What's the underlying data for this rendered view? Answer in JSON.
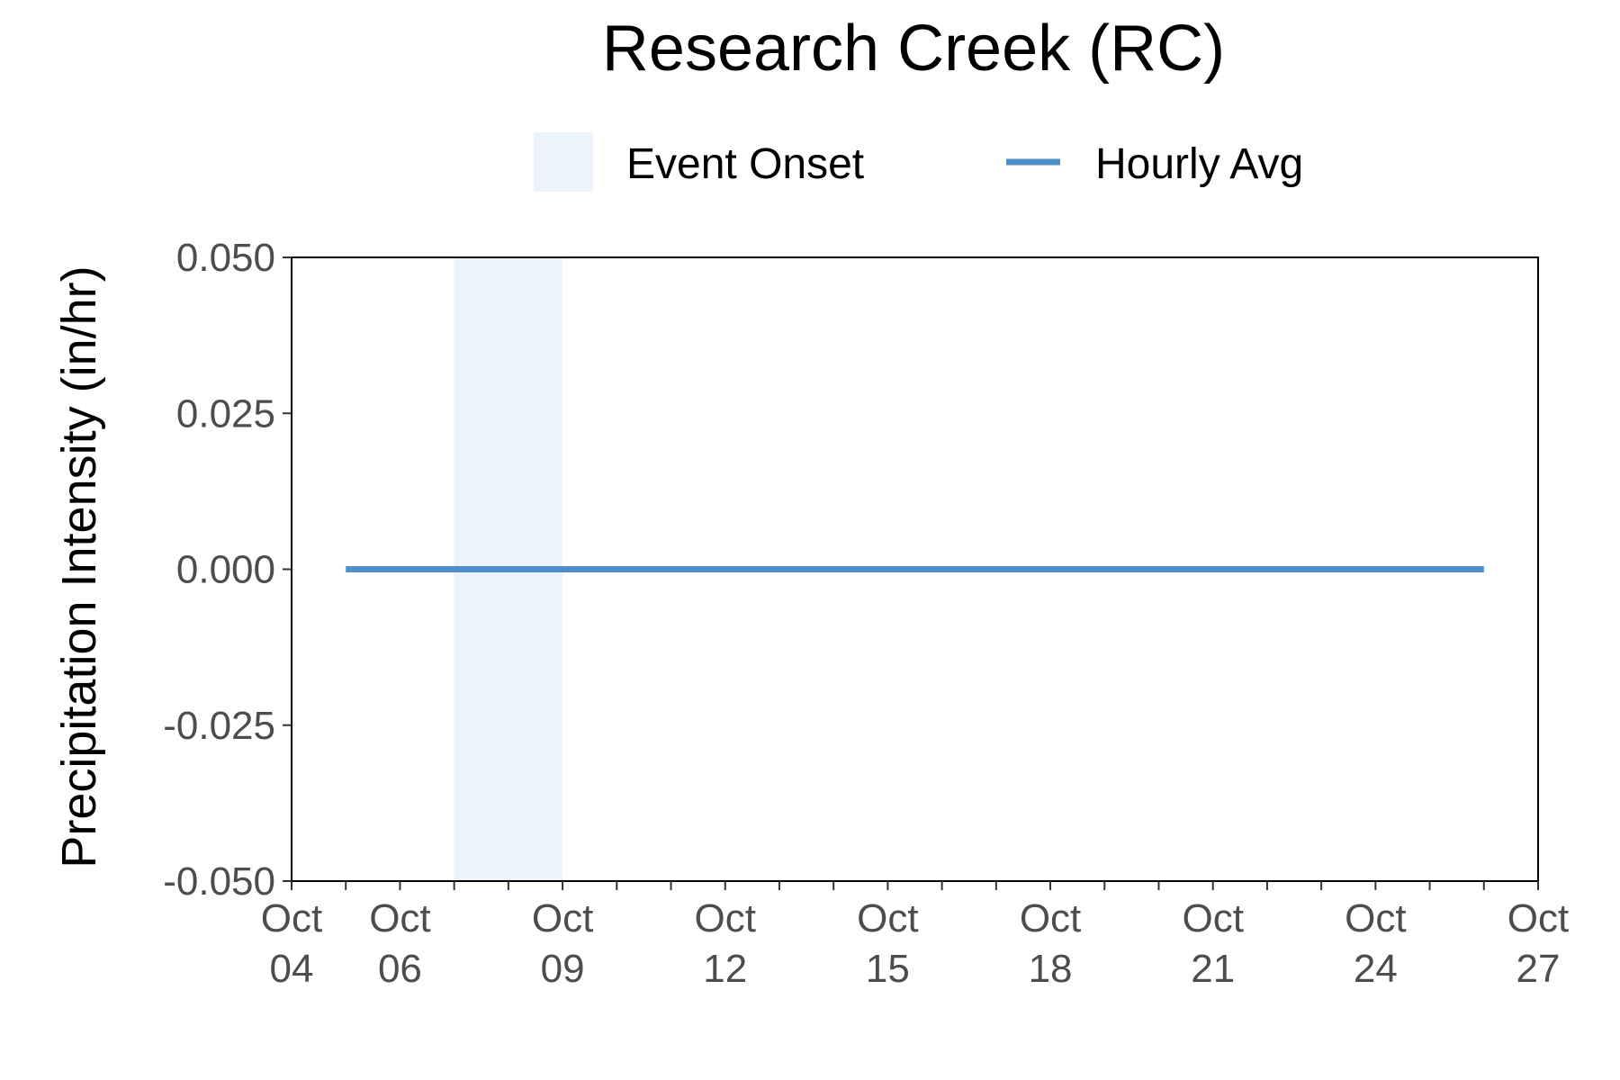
{
  "chart_data": {
    "type": "line",
    "title": "Research Creek (RC)",
    "xlabel": "",
    "ylabel": "Precipitation Intensity (in/hr)",
    "xlim": [
      "2023-10-04",
      "2023-10-27"
    ],
    "ylim": [
      -0.05,
      0.05
    ],
    "y_ticks": [
      "0.050",
      "0.025",
      "0.000",
      "-0.025",
      "-0.050"
    ],
    "x_ticks": [
      {
        "date": "2023-10-04",
        "label": [
          "Oct",
          "04"
        ]
      },
      {
        "date": "2023-10-06",
        "label": [
          "Oct",
          "06"
        ]
      },
      {
        "date": "2023-10-09",
        "label": [
          "Oct",
          "09"
        ]
      },
      {
        "date": "2023-10-12",
        "label": [
          "Oct",
          "12"
        ]
      },
      {
        "date": "2023-10-15",
        "label": [
          "Oct",
          "15"
        ]
      },
      {
        "date": "2023-10-18",
        "label": [
          "Oct",
          "18"
        ]
      },
      {
        "date": "2023-10-21",
        "label": [
          "Oct",
          "21"
        ]
      },
      {
        "date": "2023-10-24",
        "label": [
          "Oct",
          "24"
        ]
      },
      {
        "date": "2023-10-27",
        "label": [
          "Oct",
          "27"
        ]
      }
    ],
    "grid": false,
    "legend_position": "top",
    "legend": [
      {
        "name": "Event Onset",
        "kind": "band",
        "color": "#ecf3fb"
      },
      {
        "name": "Hourly Avg",
        "kind": "line",
        "color": "#4f8fc9"
      }
    ],
    "event_onset": {
      "start": "2023-10-07",
      "end": "2023-10-09",
      "color": "#ecf3fb"
    },
    "series": [
      {
        "name": "Hourly Avg",
        "color": "#4f8fc9",
        "x": [
          "2023-10-05",
          "2023-10-26"
        ],
        "y": [
          0.0,
          0.0
        ]
      }
    ]
  }
}
